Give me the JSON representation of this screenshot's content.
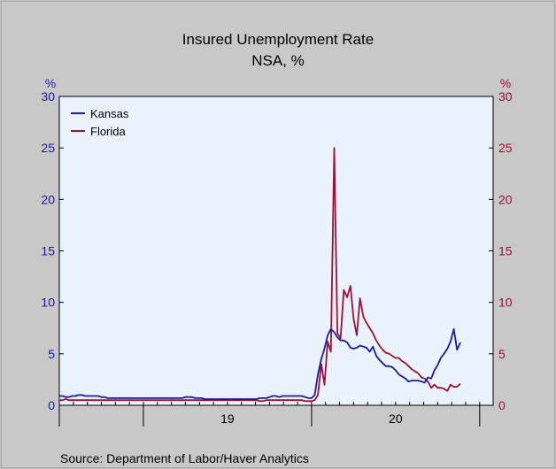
{
  "chart_data": {
    "type": "line",
    "title": "Insured Unemployment Rate",
    "subtitle": "NSA, %",
    "source": "Source:  Department of Labor/Haver Analytics",
    "y_unit_left": "%",
    "y_unit_right": "%",
    "ylim": [
      0,
      30
    ],
    "yticks": [
      "0",
      "5",
      "10",
      "15",
      "20",
      "25",
      "30"
    ],
    "x_labels": [
      {
        "label": "19",
        "t": 2019.5
      },
      {
        "label": "20",
        "t": 2020.5
      }
    ],
    "x_range": [
      2018.5,
      2021.08
    ],
    "legend_position": "top-left",
    "colors": {
      "Kansas": "#1a1aa6",
      "Florida": "#a01030"
    },
    "series": [
      {
        "name": "Kansas",
        "points": [
          [
            2018.5,
            0.9
          ],
          [
            2018.519,
            0.9
          ],
          [
            2018.538,
            0.8
          ],
          [
            2018.558,
            0.8
          ],
          [
            2018.577,
            0.9
          ],
          [
            2018.596,
            0.9
          ],
          [
            2018.615,
            1.0
          ],
          [
            2018.635,
            1.0
          ],
          [
            2018.654,
            0.9
          ],
          [
            2018.673,
            0.9
          ],
          [
            2018.692,
            0.9
          ],
          [
            2018.712,
            0.9
          ],
          [
            2018.731,
            0.9
          ],
          [
            2018.75,
            0.8
          ],
          [
            2018.769,
            0.8
          ],
          [
            2018.788,
            0.7
          ],
          [
            2018.808,
            0.7
          ],
          [
            2018.827,
            0.7
          ],
          [
            2018.846,
            0.7
          ],
          [
            2018.865,
            0.7
          ],
          [
            2018.885,
            0.7
          ],
          [
            2018.904,
            0.7
          ],
          [
            2018.923,
            0.7
          ],
          [
            2018.942,
            0.7
          ],
          [
            2018.962,
            0.7
          ],
          [
            2018.981,
            0.7
          ],
          [
            2019.0,
            0.7
          ],
          [
            2019.019,
            0.7
          ],
          [
            2019.038,
            0.7
          ],
          [
            2019.058,
            0.7
          ],
          [
            2019.077,
            0.7
          ],
          [
            2019.096,
            0.7
          ],
          [
            2019.115,
            0.7
          ],
          [
            2019.135,
            0.7
          ],
          [
            2019.154,
            0.7
          ],
          [
            2019.173,
            0.7
          ],
          [
            2019.192,
            0.7
          ],
          [
            2019.212,
            0.7
          ],
          [
            2019.231,
            0.7
          ],
          [
            2019.25,
            0.8
          ],
          [
            2019.269,
            0.8
          ],
          [
            2019.288,
            0.8
          ],
          [
            2019.308,
            0.7
          ],
          [
            2019.327,
            0.7
          ],
          [
            2019.346,
            0.7
          ],
          [
            2019.365,
            0.6
          ],
          [
            2019.385,
            0.6
          ],
          [
            2019.404,
            0.6
          ],
          [
            2019.423,
            0.6
          ],
          [
            2019.442,
            0.6
          ],
          [
            2019.462,
            0.6
          ],
          [
            2019.481,
            0.6
          ],
          [
            2019.5,
            0.6
          ],
          [
            2019.519,
            0.6
          ],
          [
            2019.538,
            0.6
          ],
          [
            2019.558,
            0.6
          ],
          [
            2019.577,
            0.6
          ],
          [
            2019.596,
            0.6
          ],
          [
            2019.615,
            0.6
          ],
          [
            2019.635,
            0.6
          ],
          [
            2019.654,
            0.6
          ],
          [
            2019.673,
            0.6
          ],
          [
            2019.692,
            0.7
          ],
          [
            2019.712,
            0.7
          ],
          [
            2019.731,
            0.7
          ],
          [
            2019.75,
            0.8
          ],
          [
            2019.769,
            0.9
          ],
          [
            2019.788,
            0.9
          ],
          [
            2019.808,
            0.8
          ],
          [
            2019.827,
            0.9
          ],
          [
            2019.846,
            0.9
          ],
          [
            2019.865,
            0.9
          ],
          [
            2019.885,
            0.9
          ],
          [
            2019.904,
            0.9
          ],
          [
            2019.923,
            0.9
          ],
          [
            2019.942,
            0.9
          ],
          [
            2019.962,
            0.8
          ],
          [
            2019.981,
            0.7
          ],
          [
            2020.0,
            0.7
          ],
          [
            2020.019,
            1.0
          ],
          [
            2020.038,
            3.0
          ],
          [
            2020.058,
            4.5
          ],
          [
            2020.077,
            5.5
          ],
          [
            2020.096,
            6.8
          ],
          [
            2020.115,
            7.4
          ],
          [
            2020.135,
            7.1
          ],
          [
            2020.154,
            6.6
          ],
          [
            2020.173,
            6.3
          ],
          [
            2020.192,
            6.3
          ],
          [
            2020.212,
            6.1
          ],
          [
            2020.231,
            5.6
          ],
          [
            2020.25,
            5.5
          ],
          [
            2020.269,
            5.6
          ],
          [
            2020.288,
            5.8
          ],
          [
            2020.308,
            5.7
          ],
          [
            2020.327,
            5.6
          ],
          [
            2020.346,
            5.2
          ],
          [
            2020.365,
            5.7
          ],
          [
            2020.385,
            4.8
          ],
          [
            2020.404,
            4.4
          ],
          [
            2020.423,
            4.1
          ],
          [
            2020.442,
            3.8
          ],
          [
            2020.462,
            3.8
          ],
          [
            2020.481,
            3.7
          ],
          [
            2020.5,
            3.4
          ],
          [
            2020.519,
            3.0
          ],
          [
            2020.538,
            2.8
          ],
          [
            2020.558,
            2.6
          ],
          [
            2020.577,
            2.3
          ],
          [
            2020.596,
            2.4
          ],
          [
            2020.615,
            2.4
          ],
          [
            2020.635,
            2.4
          ],
          [
            2020.654,
            2.3
          ],
          [
            2020.673,
            2.2
          ],
          [
            2020.692,
            2.7
          ],
          [
            2020.712,
            2.6
          ],
          [
            2020.731,
            3.4
          ],
          [
            2020.75,
            3.9
          ],
          [
            2020.769,
            4.6
          ],
          [
            2020.788,
            5.0
          ],
          [
            2020.808,
            5.5
          ],
          [
            2020.827,
            6.2
          ],
          [
            2020.846,
            7.4
          ],
          [
            2020.865,
            5.4
          ],
          [
            2020.885,
            6.1
          ]
        ]
      },
      {
        "name": "Florida",
        "points": [
          [
            2018.5,
            0.5
          ],
          [
            2018.519,
            0.5
          ],
          [
            2018.538,
            0.6
          ],
          [
            2018.558,
            0.5
          ],
          [
            2018.577,
            0.5
          ],
          [
            2018.596,
            0.5
          ],
          [
            2018.615,
            0.5
          ],
          [
            2018.635,
            0.5
          ],
          [
            2018.654,
            0.5
          ],
          [
            2018.673,
            0.5
          ],
          [
            2018.692,
            0.5
          ],
          [
            2018.712,
            0.5
          ],
          [
            2018.731,
            0.5
          ],
          [
            2018.75,
            0.5
          ],
          [
            2018.769,
            0.5
          ],
          [
            2018.788,
            0.5
          ],
          [
            2018.808,
            0.5
          ],
          [
            2018.827,
            0.5
          ],
          [
            2018.846,
            0.5
          ],
          [
            2018.865,
            0.5
          ],
          [
            2018.885,
            0.5
          ],
          [
            2018.904,
            0.5
          ],
          [
            2018.923,
            0.5
          ],
          [
            2018.942,
            0.5
          ],
          [
            2018.962,
            0.5
          ],
          [
            2018.981,
            0.5
          ],
          [
            2019.0,
            0.5
          ],
          [
            2019.019,
            0.5
          ],
          [
            2019.038,
            0.5
          ],
          [
            2019.058,
            0.5
          ],
          [
            2019.077,
            0.5
          ],
          [
            2019.096,
            0.5
          ],
          [
            2019.115,
            0.5
          ],
          [
            2019.135,
            0.5
          ],
          [
            2019.154,
            0.5
          ],
          [
            2019.173,
            0.5
          ],
          [
            2019.192,
            0.5
          ],
          [
            2019.212,
            0.5
          ],
          [
            2019.231,
            0.5
          ],
          [
            2019.25,
            0.5
          ],
          [
            2019.269,
            0.5
          ],
          [
            2019.288,
            0.5
          ],
          [
            2019.308,
            0.5
          ],
          [
            2019.327,
            0.5
          ],
          [
            2019.346,
            0.5
          ],
          [
            2019.365,
            0.5
          ],
          [
            2019.385,
            0.5
          ],
          [
            2019.404,
            0.5
          ],
          [
            2019.423,
            0.5
          ],
          [
            2019.442,
            0.5
          ],
          [
            2019.462,
            0.5
          ],
          [
            2019.481,
            0.5
          ],
          [
            2019.5,
            0.5
          ],
          [
            2019.519,
            0.5
          ],
          [
            2019.538,
            0.5
          ],
          [
            2019.558,
            0.5
          ],
          [
            2019.577,
            0.5
          ],
          [
            2019.596,
            0.5
          ],
          [
            2019.615,
            0.5
          ],
          [
            2019.635,
            0.5
          ],
          [
            2019.654,
            0.5
          ],
          [
            2019.673,
            0.5
          ],
          [
            2019.692,
            0.4
          ],
          [
            2019.712,
            0.4
          ],
          [
            2019.731,
            0.5
          ],
          [
            2019.75,
            0.5
          ],
          [
            2019.769,
            0.5
          ],
          [
            2019.788,
            0.5
          ],
          [
            2019.808,
            0.5
          ],
          [
            2019.827,
            0.5
          ],
          [
            2019.846,
            0.5
          ],
          [
            2019.865,
            0.5
          ],
          [
            2019.885,
            0.5
          ],
          [
            2019.904,
            0.5
          ],
          [
            2019.923,
            0.5
          ],
          [
            2019.942,
            0.5
          ],
          [
            2019.962,
            0.4
          ],
          [
            2019.981,
            0.4
          ],
          [
            2020.0,
            0.4
          ],
          [
            2020.019,
            0.5
          ],
          [
            2020.038,
            1.0
          ],
          [
            2020.058,
            4.0
          ],
          [
            2020.077,
            2.0
          ],
          [
            2020.096,
            6.2
          ],
          [
            2020.115,
            5.2
          ],
          [
            2020.135,
            25.0
          ],
          [
            2020.154,
            7.0
          ],
          [
            2020.173,
            6.5
          ],
          [
            2020.192,
            11.2
          ],
          [
            2020.212,
            10.5
          ],
          [
            2020.231,
            11.6
          ],
          [
            2020.25,
            8.4
          ],
          [
            2020.269,
            6.8
          ],
          [
            2020.288,
            10.4
          ],
          [
            2020.308,
            8.6
          ],
          [
            2020.327,
            8.0
          ],
          [
            2020.346,
            7.5
          ],
          [
            2020.365,
            7.0
          ],
          [
            2020.385,
            6.3
          ],
          [
            2020.404,
            5.8
          ],
          [
            2020.423,
            5.4
          ],
          [
            2020.442,
            5.1
          ],
          [
            2020.462,
            5.0
          ],
          [
            2020.481,
            4.8
          ],
          [
            2020.5,
            4.6
          ],
          [
            2020.519,
            4.6
          ],
          [
            2020.538,
            4.3
          ],
          [
            2020.558,
            4.1
          ],
          [
            2020.577,
            3.8
          ],
          [
            2020.596,
            3.5
          ],
          [
            2020.615,
            3.3
          ],
          [
            2020.635,
            3.1
          ],
          [
            2020.654,
            2.7
          ],
          [
            2020.673,
            2.6
          ],
          [
            2020.692,
            2.3
          ],
          [
            2020.712,
            1.7
          ],
          [
            2020.731,
            2.0
          ],
          [
            2020.75,
            1.7
          ],
          [
            2020.769,
            1.7
          ],
          [
            2020.788,
            1.6
          ],
          [
            2020.808,
            1.4
          ],
          [
            2020.827,
            2.0
          ],
          [
            2020.846,
            1.8
          ],
          [
            2020.865,
            1.8
          ],
          [
            2020.885,
            2.1
          ]
        ]
      }
    ]
  }
}
